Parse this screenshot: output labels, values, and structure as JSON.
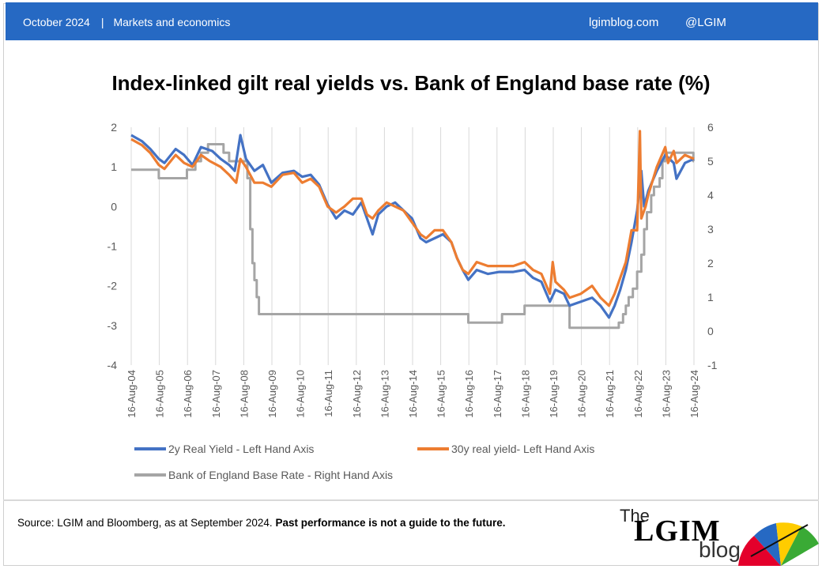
{
  "header": {
    "date": "October 2024",
    "separator": "|",
    "category": "Markets and economics",
    "site": "lgimblog.com",
    "handle": "@LGIM",
    "bar_color": "#2669c3"
  },
  "chart_data": {
    "type": "line",
    "title": "Index-linked gilt real yields vs. Bank of England base rate (%)",
    "x_tick_labels": [
      "16-Aug-04",
      "16-Aug-05",
      "16-Aug-06",
      "16-Aug-07",
      "16-Aug-08",
      "16-Aug-09",
      "16-Aug-10",
      "16-Aug-11",
      "16-Aug-12",
      "16-Aug-13",
      "16-Aug-14",
      "16-Aug-15",
      "16-Aug-16",
      "16-Aug-17",
      "16-Aug-18",
      "16-Aug-19",
      "16-Aug-20",
      "16-Aug-21",
      "16-Aug-22",
      "16-Aug-23",
      "16-Aug-24"
    ],
    "xlim": [
      2004.62,
      2024.62
    ],
    "y_left": {
      "min": -4,
      "max": 2,
      "ticks": [
        2,
        1,
        0,
        -1,
        -2,
        -3,
        -4
      ]
    },
    "y_right": {
      "min": -1,
      "max": 6,
      "ticks": [
        6,
        5,
        4,
        3,
        2,
        1,
        0,
        -1
      ]
    },
    "grid": "vertical",
    "legend_position": "bottom",
    "series": [
      {
        "name": "2y Real Yield - Left Hand Axis",
        "axis": "left",
        "color": "#4472c4",
        "points": [
          [
            2004.62,
            1.8
          ],
          [
            2005.0,
            1.65
          ],
          [
            2005.3,
            1.45
          ],
          [
            2005.6,
            1.2
          ],
          [
            2005.8,
            1.1
          ],
          [
            2006.2,
            1.45
          ],
          [
            2006.5,
            1.3
          ],
          [
            2006.8,
            1.05
          ],
          [
            2007.1,
            1.5
          ],
          [
            2007.5,
            1.4
          ],
          [
            2007.8,
            1.2
          ],
          [
            2008.1,
            1.05
          ],
          [
            2008.3,
            0.9
          ],
          [
            2008.5,
            1.8
          ],
          [
            2008.7,
            1.2
          ],
          [
            2009.0,
            0.9
          ],
          [
            2009.3,
            1.05
          ],
          [
            2009.6,
            0.6
          ],
          [
            2010.0,
            0.85
          ],
          [
            2010.4,
            0.9
          ],
          [
            2010.7,
            0.75
          ],
          [
            2011.0,
            0.8
          ],
          [
            2011.3,
            0.55
          ],
          [
            2011.6,
            0.05
          ],
          [
            2011.9,
            -0.3
          ],
          [
            2012.2,
            -0.1
          ],
          [
            2012.5,
            -0.2
          ],
          [
            2012.8,
            0.1
          ],
          [
            2013.0,
            -0.3
          ],
          [
            2013.2,
            -0.7
          ],
          [
            2013.4,
            -0.2
          ],
          [
            2013.7,
            0.0
          ],
          [
            2014.0,
            0.1
          ],
          [
            2014.3,
            -0.1
          ],
          [
            2014.6,
            -0.3
          ],
          [
            2014.9,
            -0.8
          ],
          [
            2015.1,
            -0.9
          ],
          [
            2015.4,
            -0.8
          ],
          [
            2015.7,
            -0.7
          ],
          [
            2016.0,
            -0.9
          ],
          [
            2016.2,
            -1.3
          ],
          [
            2016.4,
            -1.6
          ],
          [
            2016.6,
            -1.85
          ],
          [
            2016.9,
            -1.6
          ],
          [
            2017.3,
            -1.7
          ],
          [
            2017.7,
            -1.65
          ],
          [
            2018.2,
            -1.65
          ],
          [
            2018.6,
            -1.6
          ],
          [
            2018.9,
            -1.8
          ],
          [
            2019.2,
            -1.9
          ],
          [
            2019.5,
            -2.4
          ],
          [
            2019.7,
            -2.1
          ],
          [
            2020.0,
            -2.2
          ],
          [
            2020.2,
            -2.5
          ],
          [
            2020.6,
            -2.4
          ],
          [
            2021.0,
            -2.3
          ],
          [
            2021.3,
            -2.5
          ],
          [
            2021.6,
            -2.8
          ],
          [
            2021.8,
            -2.5
          ],
          [
            2022.0,
            -2.1
          ],
          [
            2022.2,
            -1.6
          ],
          [
            2022.4,
            -0.9
          ],
          [
            2022.6,
            -0.1
          ],
          [
            2022.75,
            0.9
          ],
          [
            2022.85,
            0.0
          ],
          [
            2023.0,
            0.4
          ],
          [
            2023.3,
            0.9
          ],
          [
            2023.6,
            1.3
          ],
          [
            2023.9,
            1.1
          ],
          [
            2024.0,
            0.7
          ],
          [
            2024.3,
            1.1
          ],
          [
            2024.62,
            1.2
          ]
        ]
      },
      {
        "name": "30y real yield- Left Hand Axis",
        "axis": "left",
        "color": "#ed7d31",
        "points": [
          [
            2004.62,
            1.7
          ],
          [
            2005.0,
            1.55
          ],
          [
            2005.3,
            1.35
          ],
          [
            2005.6,
            1.05
          ],
          [
            2005.8,
            0.95
          ],
          [
            2006.2,
            1.3
          ],
          [
            2006.5,
            1.1
          ],
          [
            2006.8,
            1.0
          ],
          [
            2007.1,
            1.3
          ],
          [
            2007.4,
            1.15
          ],
          [
            2007.8,
            1.0
          ],
          [
            2008.1,
            0.8
          ],
          [
            2008.35,
            0.6
          ],
          [
            2008.5,
            1.2
          ],
          [
            2008.7,
            1.0
          ],
          [
            2009.0,
            0.6
          ],
          [
            2009.3,
            0.6
          ],
          [
            2009.6,
            0.5
          ],
          [
            2010.0,
            0.8
          ],
          [
            2010.4,
            0.85
          ],
          [
            2010.7,
            0.6
          ],
          [
            2011.0,
            0.7
          ],
          [
            2011.3,
            0.5
          ],
          [
            2011.6,
            0.0
          ],
          [
            2011.9,
            -0.15
          ],
          [
            2012.2,
            0.0
          ],
          [
            2012.5,
            0.2
          ],
          [
            2012.8,
            0.2
          ],
          [
            2013.0,
            -0.2
          ],
          [
            2013.2,
            -0.3
          ],
          [
            2013.4,
            -0.1
          ],
          [
            2013.7,
            0.1
          ],
          [
            2014.0,
            0.0
          ],
          [
            2014.3,
            -0.1
          ],
          [
            2014.6,
            -0.4
          ],
          [
            2014.9,
            -0.7
          ],
          [
            2015.1,
            -0.8
          ],
          [
            2015.4,
            -0.6
          ],
          [
            2015.7,
            -0.6
          ],
          [
            2016.0,
            -0.9
          ],
          [
            2016.2,
            -1.3
          ],
          [
            2016.4,
            -1.6
          ],
          [
            2016.6,
            -1.7
          ],
          [
            2016.9,
            -1.4
          ],
          [
            2017.3,
            -1.5
          ],
          [
            2017.7,
            -1.5
          ],
          [
            2018.2,
            -1.5
          ],
          [
            2018.6,
            -1.4
          ],
          [
            2018.9,
            -1.6
          ],
          [
            2019.2,
            -1.7
          ],
          [
            2019.5,
            -2.2
          ],
          [
            2019.6,
            -1.4
          ],
          [
            2019.7,
            -1.9
          ],
          [
            2020.0,
            -2.1
          ],
          [
            2020.2,
            -2.3
          ],
          [
            2020.6,
            -2.2
          ],
          [
            2021.0,
            -2.0
          ],
          [
            2021.3,
            -2.3
          ],
          [
            2021.6,
            -2.5
          ],
          [
            2021.8,
            -2.2
          ],
          [
            2022.0,
            -1.8
          ],
          [
            2022.2,
            -1.4
          ],
          [
            2022.4,
            -0.6
          ],
          [
            2022.6,
            -0.6
          ],
          [
            2022.7,
            1.9
          ],
          [
            2022.75,
            -0.3
          ],
          [
            2022.9,
            0.0
          ],
          [
            2023.0,
            0.3
          ],
          [
            2023.3,
            1.0
          ],
          [
            2023.6,
            1.5
          ],
          [
            2023.7,
            1.1
          ],
          [
            2023.9,
            1.4
          ],
          [
            2024.0,
            1.1
          ],
          [
            2024.3,
            1.3
          ],
          [
            2024.62,
            1.2
          ]
        ]
      },
      {
        "name": "Bank of England Base Rate - Right Hand Axis",
        "axis": "right",
        "color": "#a5a5a5",
        "points": [
          [
            2004.62,
            4.75
          ],
          [
            2005.6,
            4.75
          ],
          [
            2005.6,
            4.5
          ],
          [
            2006.6,
            4.5
          ],
          [
            2006.6,
            4.75
          ],
          [
            2006.9,
            4.75
          ],
          [
            2006.9,
            5.0
          ],
          [
            2007.1,
            5.0
          ],
          [
            2007.1,
            5.25
          ],
          [
            2007.35,
            5.25
          ],
          [
            2007.35,
            5.5
          ],
          [
            2007.9,
            5.5
          ],
          [
            2007.9,
            5.25
          ],
          [
            2008.1,
            5.25
          ],
          [
            2008.1,
            5.0
          ],
          [
            2008.75,
            5.0
          ],
          [
            2008.75,
            4.5
          ],
          [
            2008.85,
            4.5
          ],
          [
            2008.85,
            3.0
          ],
          [
            2008.93,
            3.0
          ],
          [
            2008.93,
            2.0
          ],
          [
            2009.0,
            2.0
          ],
          [
            2009.0,
            1.5
          ],
          [
            2009.08,
            1.5
          ],
          [
            2009.08,
            1.0
          ],
          [
            2009.16,
            1.0
          ],
          [
            2009.16,
            0.5
          ],
          [
            2016.6,
            0.5
          ],
          [
            2016.6,
            0.25
          ],
          [
            2017.8,
            0.25
          ],
          [
            2017.8,
            0.5
          ],
          [
            2018.6,
            0.5
          ],
          [
            2018.6,
            0.75
          ],
          [
            2020.2,
            0.75
          ],
          [
            2020.2,
            0.1
          ],
          [
            2021.95,
            0.1
          ],
          [
            2021.95,
            0.25
          ],
          [
            2022.1,
            0.25
          ],
          [
            2022.1,
            0.5
          ],
          [
            2022.2,
            0.5
          ],
          [
            2022.2,
            0.75
          ],
          [
            2022.3,
            0.75
          ],
          [
            2022.3,
            1.0
          ],
          [
            2022.45,
            1.0
          ],
          [
            2022.45,
            1.25
          ],
          [
            2022.6,
            1.25
          ],
          [
            2022.6,
            1.75
          ],
          [
            2022.75,
            1.75
          ],
          [
            2022.75,
            2.25
          ],
          [
            2022.85,
            2.25
          ],
          [
            2022.85,
            3.0
          ],
          [
            2022.95,
            3.0
          ],
          [
            2022.95,
            3.5
          ],
          [
            2023.1,
            3.5
          ],
          [
            2023.1,
            4.0
          ],
          [
            2023.2,
            4.0
          ],
          [
            2023.2,
            4.25
          ],
          [
            2023.4,
            4.25
          ],
          [
            2023.4,
            4.5
          ],
          [
            2023.5,
            4.5
          ],
          [
            2023.5,
            5.0
          ],
          [
            2023.6,
            5.0
          ],
          [
            2023.6,
            5.25
          ],
          [
            2024.6,
            5.25
          ],
          [
            2024.6,
            5.0
          ],
          [
            2024.62,
            5.0
          ]
        ]
      }
    ]
  },
  "footer": {
    "source": "Source: LGIM  and Bloomberg, as at September 2024.",
    "note": "Past performance is not a guide to the future."
  },
  "logo": {
    "the": "The",
    "lgim": "LGIM",
    "blog": "blog",
    "icon": "umbrella-icon"
  }
}
